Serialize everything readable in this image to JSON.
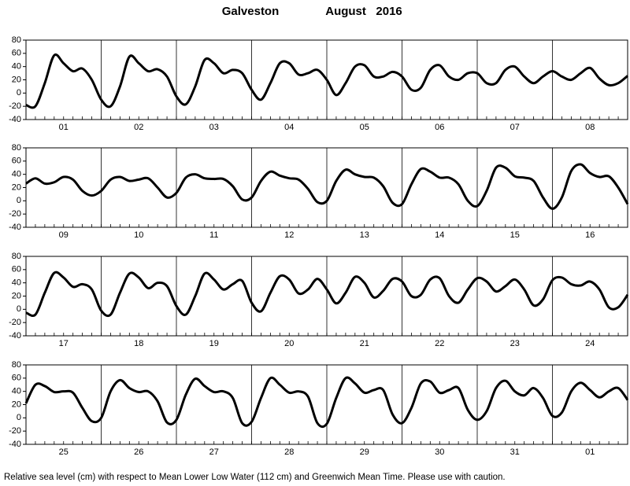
{
  "title": "Galveston",
  "date": "August   2016",
  "footer": "Relative sea level (cm) with respect to Mean Lower Low Water (112 cm) and Greenwich Mean Time. Please use with caution.",
  "chart_data": [
    {
      "type": "line",
      "x": [
        0,
        3,
        6,
        9,
        12,
        15,
        18,
        21,
        24,
        27,
        30,
        33,
        36,
        39,
        42,
        45,
        48,
        51,
        54,
        57,
        60,
        63,
        66,
        69,
        72,
        75,
        78,
        81,
        84,
        87,
        90,
        93,
        96,
        99,
        102,
        105,
        108,
        111,
        114,
        117,
        120,
        123,
        126,
        129,
        132,
        135,
        138,
        141,
        144,
        147,
        150,
        153,
        156,
        159,
        162,
        165,
        168,
        171,
        174,
        177,
        180,
        183,
        186,
        189,
        192
      ],
      "series": [
        {
          "color": "#000000",
          "values": [
            -18,
            -20,
            15,
            57,
            45,
            33,
            37,
            20,
            -10,
            -20,
            10,
            55,
            45,
            33,
            36,
            25,
            -5,
            -17,
            10,
            50,
            45,
            30,
            35,
            30,
            5,
            -10,
            15,
            45,
            45,
            28,
            30,
            35,
            20,
            -3,
            15,
            40,
            42,
            25,
            25,
            32,
            25,
            5,
            8,
            35,
            42,
            25,
            20,
            30,
            30,
            15,
            15,
            35,
            40,
            25,
            15,
            25,
            33,
            25,
            20,
            30,
            38,
            22,
            12,
            15,
            26
          ]
        }
      ],
      "xlim": [
        0,
        192
      ],
      "ylim": [
        -40,
        80
      ],
      "yticks": [
        -40,
        -20,
        0,
        20,
        40,
        60,
        80
      ],
      "xticks": [
        {
          "value": 12,
          "label": "01"
        },
        {
          "value": 36,
          "label": "02"
        },
        {
          "value": 60,
          "label": "03"
        },
        {
          "value": 84,
          "label": "04"
        },
        {
          "value": 108,
          "label": "05"
        },
        {
          "value": 132,
          "label": "06"
        },
        {
          "value": 156,
          "label": "07"
        },
        {
          "value": 180,
          "label": "08"
        }
      ]
    },
    {
      "type": "line",
      "x": [
        0,
        3,
        6,
        9,
        12,
        15,
        18,
        21,
        24,
        27,
        30,
        33,
        36,
        39,
        42,
        45,
        48,
        51,
        54,
        57,
        60,
        63,
        66,
        69,
        72,
        75,
        78,
        81,
        84,
        87,
        90,
        93,
        96,
        99,
        102,
        105,
        108,
        111,
        114,
        117,
        120,
        123,
        126,
        129,
        132,
        135,
        138,
        141,
        144,
        147,
        150,
        153,
        156,
        159,
        162,
        165,
        168,
        171,
        174,
        177,
        180,
        183,
        186,
        189,
        192
      ],
      "series": [
        {
          "color": "#000000",
          "values": [
            26,
            34,
            26,
            28,
            36,
            32,
            15,
            8,
            15,
            32,
            36,
            30,
            32,
            34,
            20,
            5,
            12,
            35,
            40,
            34,
            33,
            33,
            22,
            2,
            5,
            30,
            44,
            38,
            34,
            32,
            18,
            -2,
            0,
            30,
            47,
            40,
            36,
            35,
            22,
            -3,
            -5,
            25,
            48,
            44,
            35,
            35,
            25,
            0,
            -8,
            15,
            50,
            50,
            37,
            35,
            30,
            5,
            -12,
            5,
            45,
            55,
            42,
            36,
            37,
            20,
            -5
          ]
        }
      ],
      "xlim": [
        0,
        192
      ],
      "ylim": [
        -40,
        80
      ],
      "yticks": [
        -40,
        -20,
        0,
        20,
        40,
        60,
        80
      ],
      "xticks": [
        {
          "value": 12,
          "label": "09"
        },
        {
          "value": 36,
          "label": "10"
        },
        {
          "value": 60,
          "label": "11"
        },
        {
          "value": 84,
          "label": "12"
        },
        {
          "value": 108,
          "label": "13"
        },
        {
          "value": 132,
          "label": "14"
        },
        {
          "value": 156,
          "label": "15"
        },
        {
          "value": 180,
          "label": "16"
        }
      ]
    },
    {
      "type": "line",
      "x": [
        0,
        3,
        6,
        9,
        12,
        15,
        18,
        21,
        24,
        27,
        30,
        33,
        36,
        39,
        42,
        45,
        48,
        51,
        54,
        57,
        60,
        63,
        66,
        69,
        72,
        75,
        78,
        81,
        84,
        87,
        90,
        93,
        96,
        99,
        102,
        105,
        108,
        111,
        114,
        117,
        120,
        123,
        126,
        129,
        132,
        135,
        138,
        141,
        144,
        147,
        150,
        153,
        156,
        159,
        162,
        165,
        168,
        171,
        174,
        177,
        180,
        183,
        186,
        189,
        192
      ],
      "series": [
        {
          "color": "#000000",
          "values": [
            -5,
            -8,
            25,
            55,
            48,
            34,
            38,
            30,
            -2,
            -8,
            25,
            54,
            48,
            32,
            40,
            35,
            5,
            -8,
            20,
            54,
            45,
            30,
            38,
            43,
            10,
            -3,
            25,
            50,
            45,
            24,
            30,
            46,
            30,
            9,
            25,
            49,
            40,
            18,
            28,
            46,
            42,
            20,
            22,
            45,
            47,
            20,
            10,
            30,
            47,
            42,
            27,
            35,
            45,
            30,
            6,
            15,
            44,
            48,
            38,
            36,
            42,
            30,
            3,
            3,
            22
          ]
        }
      ],
      "xlim": [
        0,
        192
      ],
      "ylim": [
        -40,
        80
      ],
      "yticks": [
        -40,
        -20,
        0,
        20,
        40,
        60,
        80
      ],
      "xticks": [
        {
          "value": 12,
          "label": "17"
        },
        {
          "value": 36,
          "label": "18"
        },
        {
          "value": 60,
          "label": "19"
        },
        {
          "value": 84,
          "label": "20"
        },
        {
          "value": 108,
          "label": "21"
        },
        {
          "value": 132,
          "label": "22"
        },
        {
          "value": 156,
          "label": "23"
        },
        {
          "value": 180,
          "label": "24"
        }
      ]
    },
    {
      "type": "line",
      "x": [
        0,
        3,
        6,
        9,
        12,
        15,
        18,
        21,
        24,
        27,
        30,
        33,
        36,
        39,
        42,
        45,
        48,
        51,
        54,
        57,
        60,
        63,
        66,
        69,
        72,
        75,
        78,
        81,
        84,
        87,
        90,
        93,
        96,
        99,
        102,
        105,
        108,
        111,
        114,
        117,
        120,
        123,
        126,
        129,
        132,
        135,
        138,
        141,
        144,
        147,
        150,
        153,
        156,
        159,
        162,
        165,
        168,
        171,
        174,
        177,
        180,
        183,
        186,
        189,
        192
      ],
      "series": [
        {
          "color": "#000000",
          "values": [
            22,
            50,
            48,
            39,
            40,
            38,
            15,
            -5,
            0,
            40,
            57,
            45,
            39,
            40,
            25,
            -7,
            -3,
            35,
            59,
            48,
            39,
            40,
            30,
            -8,
            -6,
            30,
            60,
            50,
            38,
            40,
            32,
            -8,
            -9,
            30,
            60,
            52,
            38,
            42,
            42,
            5,
            -8,
            15,
            52,
            55,
            38,
            42,
            45,
            12,
            -3,
            10,
            45,
            56,
            40,
            34,
            45,
            30,
            3,
            8,
            40,
            53,
            42,
            31,
            40,
            45,
            27
          ]
        }
      ],
      "xlim": [
        0,
        192
      ],
      "ylim": [
        -40,
        80
      ],
      "yticks": [
        -40,
        -20,
        0,
        20,
        40,
        60,
        80
      ],
      "xticks": [
        {
          "value": 12,
          "label": "25"
        },
        {
          "value": 36,
          "label": "26"
        },
        {
          "value": 60,
          "label": "27"
        },
        {
          "value": 84,
          "label": "28"
        },
        {
          "value": 108,
          "label": "29"
        },
        {
          "value": 132,
          "label": "30"
        },
        {
          "value": 156,
          "label": "31"
        },
        {
          "value": 180,
          "label": "01"
        }
      ]
    }
  ]
}
